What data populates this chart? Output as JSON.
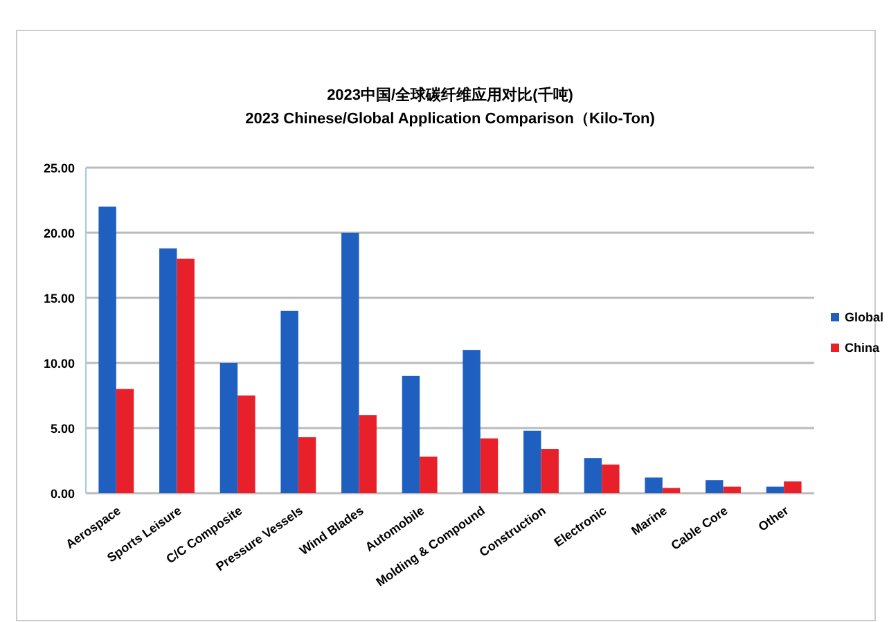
{
  "chart_data": {
    "type": "bar",
    "title": "2023中国/全球碳纤维应用对比(千吨)",
    "subtitle": "2023 Chinese/Global Application Comparison（Kilo-Ton)",
    "categories": [
      "Aerospace",
      "Sports Leisure",
      "C/C Composite",
      "Pressure Vessels",
      "Wind Blades",
      "Automobile",
      "Molding & Compound",
      "Construction",
      "Electronic",
      "Marine",
      "Cable Core",
      "Other"
    ],
    "series": [
      {
        "name": "Global",
        "color": "#1f5fbf",
        "values": [
          22,
          18.8,
          10,
          14,
          20,
          9,
          11,
          4.8,
          2.7,
          1.2,
          1.0,
          0.5
        ]
      },
      {
        "name": "China",
        "color": "#e8202a",
        "values": [
          8,
          18,
          7.5,
          4.3,
          6,
          2.8,
          4.2,
          3.4,
          2.2,
          0.4,
          0.5,
          0.9
        ]
      }
    ],
    "ylim": [
      0,
      25
    ],
    "yticks": [
      {
        "value": 0,
        "label": "0.00"
      },
      {
        "value": 5,
        "label": "5.00"
      },
      {
        "value": 10,
        "label": "10.00"
      },
      {
        "value": 15,
        "label": "15.00"
      },
      {
        "value": 20,
        "label": "20.00"
      },
      {
        "value": 25,
        "label": "25.00"
      }
    ],
    "grid": "y",
    "legend": "right"
  }
}
